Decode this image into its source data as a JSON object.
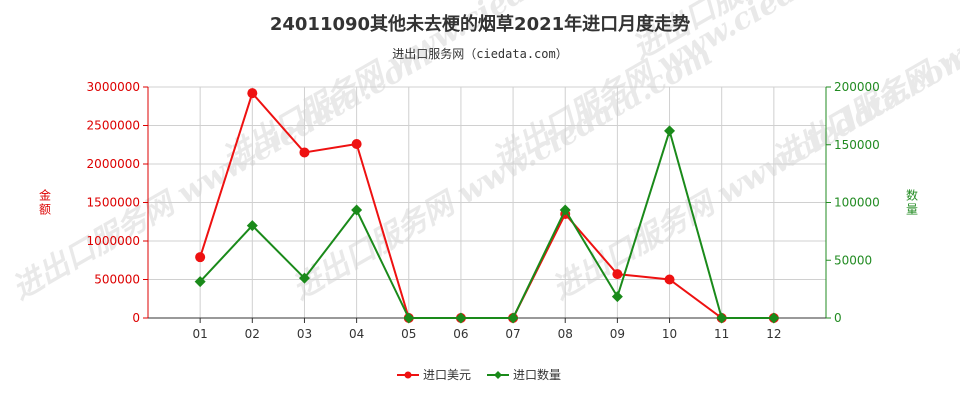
{
  "chart_data": {
    "type": "line",
    "title": "24011090其他未去梗的烟草2021年进口月度走势",
    "subtitle": "进出口服务网（ciedata.com）",
    "categories": [
      "01",
      "02",
      "03",
      "04",
      "05",
      "06",
      "07",
      "08",
      "09",
      "10",
      "11",
      "12"
    ],
    "y_left": {
      "label": "金额",
      "min": 0,
      "max": 3000000,
      "ticks": [
        0,
        500000,
        1000000,
        1500000,
        2000000,
        2500000,
        3000000
      ],
      "color": "#dd0000"
    },
    "y_right": {
      "label": "数量",
      "min": 0,
      "max": 200000,
      "ticks": [
        0,
        50000,
        100000,
        150000,
        200000
      ],
      "color": "#228b22"
    },
    "series": [
      {
        "name": "进口美元",
        "axis": "left",
        "color": "#ee1111",
        "marker": "circle",
        "values": [
          790000,
          2920000,
          2150000,
          2260000,
          0,
          0,
          0,
          1350000,
          570000,
          500000,
          0,
          0
        ]
      },
      {
        "name": "进口数量",
        "axis": "right",
        "color": "#1a8a1a",
        "marker": "diamond",
        "values": [
          31500,
          80000,
          34500,
          93500,
          0,
          0,
          0,
          93500,
          18500,
          162000,
          0,
          0
        ]
      }
    ],
    "grid": true,
    "legend": "bottom-center"
  },
  "watermark": "进出口服务网 www.ciedata.com"
}
